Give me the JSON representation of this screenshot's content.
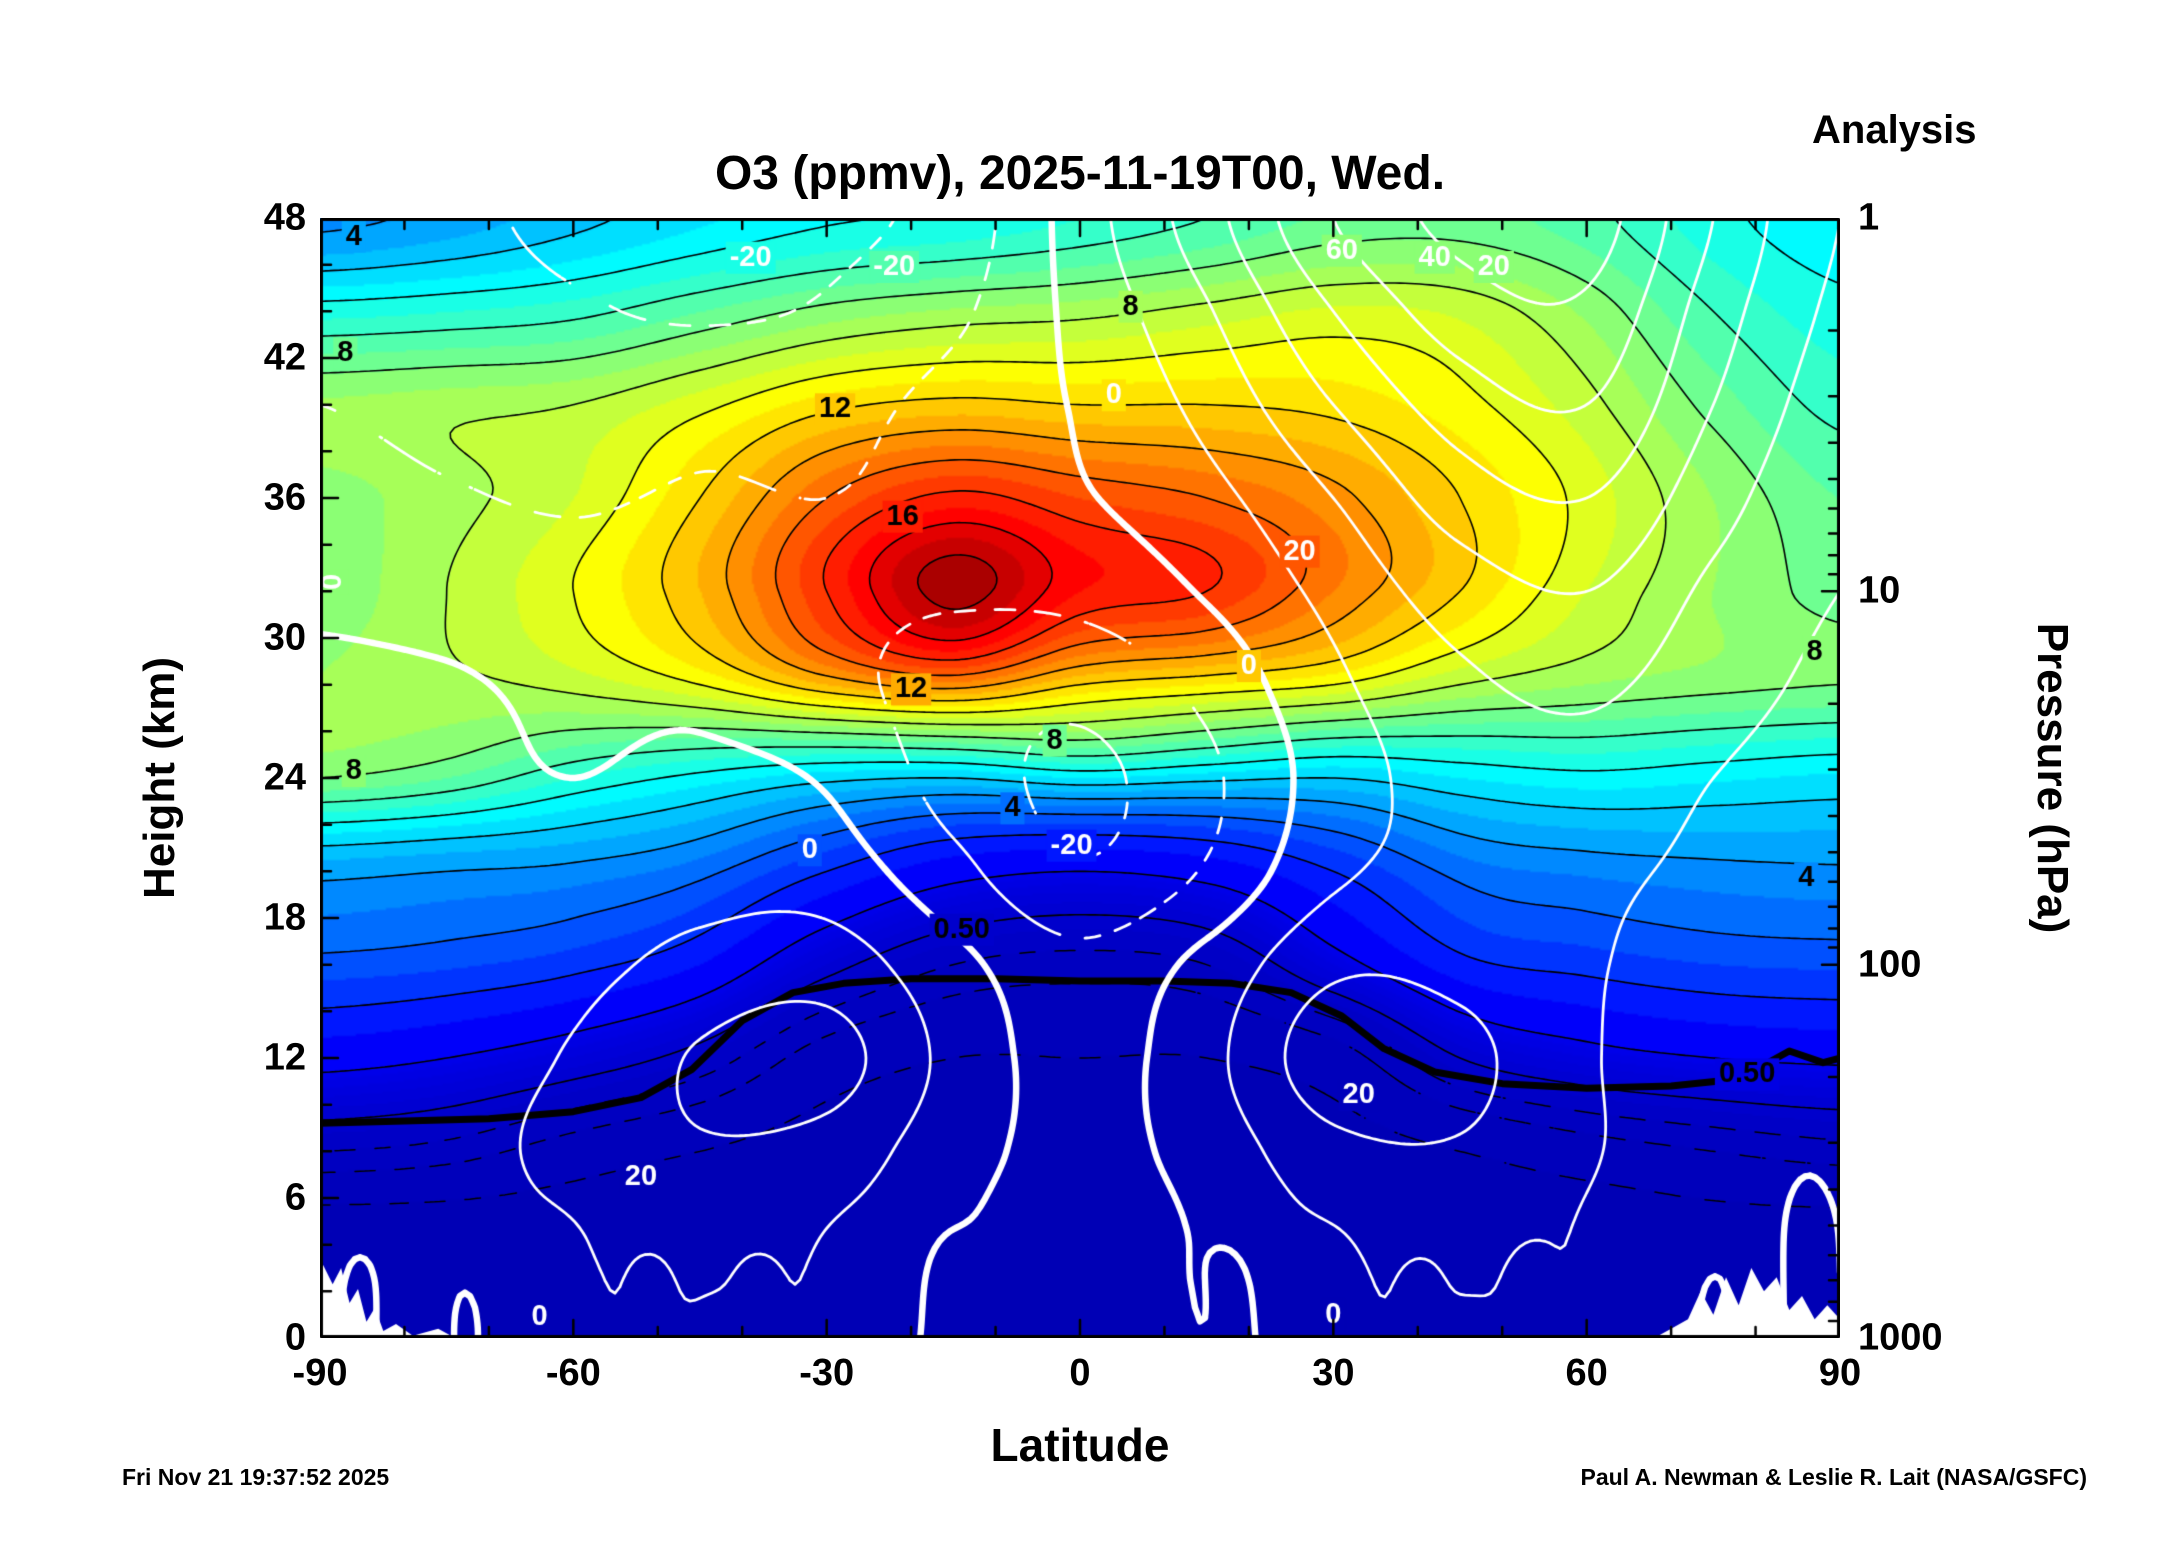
{
  "header": {
    "title": "O3 (ppmv), 2025-11-19T00, Wed.",
    "analysis_label": "Analysis"
  },
  "footer": {
    "timestamp": "Fri Nov 21 19:37:52 2025",
    "credit": "Paul A. Newman & Leslie R. Lait (NASA/GSFC)"
  },
  "axes": {
    "x": {
      "label": "Latitude",
      "min": -90,
      "max": 90,
      "ticks": [
        -90,
        -60,
        -30,
        0,
        30,
        60,
        90
      ],
      "minor_step": 10
    },
    "y_left": {
      "label": "Height (km)",
      "min": 0,
      "max": 48,
      "ticks": [
        0,
        6,
        12,
        18,
        24,
        30,
        36,
        42,
        48
      ],
      "minor_step": 2
    },
    "y_right": {
      "label": "Pressure (hPa)",
      "ticks": [
        {
          "label": "1",
          "z": 48
        },
        {
          "label": "10",
          "z": 32
        },
        {
          "label": "100",
          "z": 16
        },
        {
          "label": "1000",
          "z": 0
        }
      ]
    }
  },
  "chart_data": {
    "type": "heatmap",
    "title": "O3 (ppmv), 2025-11-19T00, Wed.",
    "xlabel": "Latitude",
    "ylabel_left": "Height (km)",
    "ylabel_right": "Pressure (hPa)",
    "x_range": [
      -90,
      90
    ],
    "y_range_km": [
      0,
      48
    ],
    "pressure_ticks_hpa": [
      1,
      10,
      100,
      1000
    ],
    "fill_colormap": "jet",
    "fill_value_range": [
      0,
      17
    ],
    "o3_ppmv": {
      "lats": [
        -90,
        -75,
        -60,
        -45,
        -30,
        -15,
        0,
        15,
        30,
        45,
        60,
        75,
        90
      ],
      "heights_km": [
        0,
        4,
        8,
        12,
        16,
        20,
        24,
        28,
        32,
        36,
        40,
        44,
        48
      ],
      "values": [
        [
          0.03,
          0.03,
          0.03,
          0.03,
          0.03,
          0.03,
          0.03,
          0.03,
          0.03,
          0.03,
          0.03,
          0.03,
          0.03
        ],
        [
          0.05,
          0.05,
          0.05,
          0.04,
          0.04,
          0.04,
          0.04,
          0.04,
          0.04,
          0.05,
          0.05,
          0.06,
          0.06
        ],
        [
          0.3,
          0.25,
          0.15,
          0.1,
          0.07,
          0.06,
          0.06,
          0.06,
          0.07,
          0.1,
          0.15,
          0.2,
          0.25
        ],
        [
          1.2,
          1.0,
          0.7,
          0.4,
          0.15,
          0.1,
          0.1,
          0.1,
          0.15,
          0.5,
          0.8,
          1.0,
          1.1
        ],
        [
          2.8,
          2.6,
          2.2,
          1.5,
          0.6,
          0.3,
          0.25,
          0.3,
          0.8,
          1.8,
          2.2,
          2.5,
          2.6
        ],
        [
          4.2,
          4.0,
          3.8,
          3.2,
          2.0,
          1.2,
          1.0,
          1.2,
          2.0,
          3.2,
          3.6,
          3.8,
          3.9
        ],
        [
          8.0,
          7.5,
          6.5,
          5.8,
          5.2,
          5.0,
          5.5,
          5.2,
          5.0,
          5.5,
          5.8,
          5.6,
          5.4
        ],
        [
          8.5,
          8.8,
          9.2,
          10.0,
          11.5,
          12.3,
          11.0,
          10.5,
          10.0,
          9.0,
          8.5,
          8.2,
          8.0
        ],
        [
          8.2,
          9.0,
          10.0,
          11.5,
          14.0,
          16.3,
          14.5,
          14.0,
          12.5,
          11.0,
          9.5,
          8.5,
          7.8
        ],
        [
          8.3,
          8.8,
          9.5,
          11.0,
          13.0,
          14.2,
          13.5,
          13.0,
          12.2,
          11.0,
          9.8,
          8.5,
          7.5
        ],
        [
          8.6,
          8.8,
          9.0,
          9.8,
          10.8,
          11.2,
          11.0,
          11.0,
          10.8,
          10.2,
          9.2,
          7.8,
          6.8
        ],
        [
          6.3,
          6.5,
          6.8,
          7.5,
          8.2,
          8.6,
          8.8,
          9.2,
          9.6,
          9.4,
          8.4,
          7.0,
          6.2
        ],
        [
          3.8,
          4.2,
          4.8,
          5.4,
          5.9,
          6.1,
          6.5,
          7.0,
          7.6,
          7.7,
          7.2,
          6.2,
          5.6
        ]
      ]
    },
    "o3_contour_levels_solid": [
      0.5,
      1,
      2,
      3,
      4,
      5,
      6,
      7,
      8,
      9,
      10,
      11,
      12,
      13,
      14,
      15,
      16
    ],
    "o3_contour_levels_dashed": [
      0.1,
      0.2,
      0.3
    ],
    "zonal_wind_ms": {
      "lats": [
        -90,
        -75,
        -60,
        -45,
        -30,
        -15,
        0,
        15,
        30,
        45,
        60,
        75,
        90
      ],
      "heights_km": [
        0,
        4,
        8,
        12,
        16,
        20,
        24,
        28,
        32,
        36,
        40,
        44,
        48
      ],
      "values": [
        [
          0,
          1,
          4,
          6,
          3,
          -2,
          -4,
          -2,
          3,
          6,
          4,
          1,
          0
        ],
        [
          1,
          4,
          9,
          13,
          9,
          0,
          -5,
          0,
          9,
          13,
          8,
          3,
          1
        ],
        [
          2,
          6,
          13,
          19,
          16,
          4,
          -3,
          4,
          17,
          19,
          11,
          4,
          2
        ],
        [
          2,
          5,
          11,
          21,
          24,
          7,
          -4,
          7,
          26,
          23,
          11,
          5,
          3
        ],
        [
          2,
          3,
          7,
          13,
          15,
          3,
          -7,
          3,
          18,
          17,
          11,
          6,
          4
        ],
        [
          2,
          2,
          3,
          6,
          5,
          -7,
          -19,
          -9,
          8,
          13,
          12,
          8,
          5
        ],
        [
          3,
          2,
          0,
          2,
          -1,
          -14,
          -22,
          -12,
          5,
          14,
          16,
          10,
          6
        ],
        [
          2,
          1,
          -2,
          -2,
          -7,
          -14,
          -17,
          -7,
          8,
          18,
          22,
          14,
          8
        ],
        [
          -2,
          -4,
          -6,
          -5,
          -8,
          -9,
          -7,
          1,
          13,
          25,
          30,
          18,
          10
        ],
        [
          -6,
          -9,
          -11,
          -9,
          -10,
          -7,
          -1,
          7,
          20,
          35,
          40,
          24,
          12
        ],
        [
          -10,
          -13,
          -15,
          -13,
          -13,
          -7,
          1,
          13,
          30,
          45,
          50,
          30,
          15
        ],
        [
          -13,
          -16,
          -19,
          -21,
          -19,
          -12,
          3,
          19,
          40,
          55,
          58,
          35,
          18
        ],
        [
          -15,
          -18,
          -22,
          -24,
          -22,
          -16,
          5,
          26,
          50,
          63,
          65,
          40,
          20
        ]
      ]
    },
    "wind_contour_levels": [
      -20,
      -10,
      0,
      10,
      20,
      30,
      40,
      50,
      60
    ],
    "tropopause_line": [
      [
        -90,
        9.2
      ],
      [
        -80,
        9.3
      ],
      [
        -70,
        9.4
      ],
      [
        -60,
        9.7
      ],
      [
        -52,
        10.3
      ],
      [
        -46,
        11.5
      ],
      [
        -40,
        13.6
      ],
      [
        -34,
        14.8
      ],
      [
        -28,
        15.2
      ],
      [
        -20,
        15.4
      ],
      [
        -10,
        15.4
      ],
      [
        0,
        15.3
      ],
      [
        10,
        15.3
      ],
      [
        18,
        15.2
      ],
      [
        25,
        14.8
      ],
      [
        31,
        13.8
      ],
      [
        36,
        12.4
      ],
      [
        42,
        11.4
      ],
      [
        50,
        10.9
      ],
      [
        60,
        10.7
      ],
      [
        70,
        10.8
      ],
      [
        78,
        11.1
      ],
      [
        84,
        12.3
      ],
      [
        88,
        11.8
      ],
      [
        90,
        12.0
      ]
    ],
    "o3_labels": [
      {
        "text": "4",
        "lat": -86,
        "z": 47.2
      },
      {
        "text": "8",
        "lat": -87,
        "z": 42.2
      },
      {
        "text": "12",
        "lat": -29,
        "z": 39.8
      },
      {
        "text": "8",
        "lat": 6,
        "z": 44.2
      },
      {
        "text": "16",
        "lat": -21,
        "z": 35.2
      },
      {
        "text": "12",
        "lat": -20,
        "z": 27.8
      },
      {
        "text": "8",
        "lat": -3,
        "z": 25.6
      },
      {
        "text": "8",
        "lat": -86,
        "z": 24.3
      },
      {
        "text": "4",
        "lat": -8,
        "z": 22.7
      },
      {
        "text": "0.50",
        "lat": -14,
        "z": 17.5
      },
      {
        "text": "8",
        "lat": 87,
        "z": 29.4
      },
      {
        "text": "4",
        "lat": 86,
        "z": 19.7
      },
      {
        "text": "0.50",
        "lat": 79,
        "z": 11.3
      }
    ],
    "wind_labels": [
      {
        "text": "-20",
        "lat": -39,
        "z": 46.3
      },
      {
        "text": "-20",
        "lat": -22,
        "z": 45.9
      },
      {
        "text": "60",
        "lat": 31,
        "z": 46.6
      },
      {
        "text": "40",
        "lat": 42,
        "z": 46.3
      },
      {
        "text": "20",
        "lat": 49,
        "z": 45.9
      },
      {
        "text": "0",
        "lat": 4,
        "z": 40.4
      },
      {
        "text": "20",
        "lat": 26,
        "z": 33.7
      },
      {
        "text": "0",
        "lat": 20,
        "z": 28.8
      },
      {
        "text": "0",
        "lat": -88.5,
        "z": 32.4,
        "rot": -90
      },
      {
        "text": "-20",
        "lat": -1,
        "z": 21.1
      },
      {
        "text": "0",
        "lat": -32,
        "z": 20.9
      },
      {
        "text": "20",
        "lat": -52,
        "z": 6.9
      },
      {
        "text": "20",
        "lat": 33,
        "z": 10.4
      },
      {
        "text": "0",
        "lat": -64,
        "z": 0.9
      },
      {
        "text": "0",
        "lat": 30,
        "z": 1.0
      }
    ],
    "terrain_mask": [
      [
        [
          -90,
          3.4
        ],
        [
          -88.5,
          2.3
        ],
        [
          -87.5,
          3.0
        ],
        [
          -86.5,
          1.5
        ],
        [
          -85.5,
          2.1
        ],
        [
          -84.5,
          0.7
        ],
        [
          -83.5,
          1.3
        ],
        [
          -82.5,
          0.3
        ],
        [
          -81,
          0.6
        ],
        [
          -79,
          0.1
        ],
        [
          -76,
          0.4
        ],
        [
          -74,
          0
        ],
        [
          -90,
          0
        ]
      ],
      [
        [
          68,
          0
        ],
        [
          70,
          0.4
        ],
        [
          72,
          0.8
        ],
        [
          73.5,
          2.0
        ],
        [
          75,
          1.0
        ],
        [
          76.5,
          2.6
        ],
        [
          78,
          1.4
        ],
        [
          79.5,
          3.0
        ],
        [
          81,
          2.0
        ],
        [
          82.5,
          2.6
        ],
        [
          84,
          1.2
        ],
        [
          85.5,
          1.8
        ],
        [
          87,
          0.8
        ],
        [
          88.5,
          1.4
        ],
        [
          90,
          0.8
        ],
        [
          90,
          0
        ]
      ]
    ],
    "colors": {
      "o3_contour": "#000000",
      "wind_contour": "#ffffff",
      "tropopause": "#000000",
      "terrain": "#ffffff",
      "frame": "#000000"
    }
  }
}
